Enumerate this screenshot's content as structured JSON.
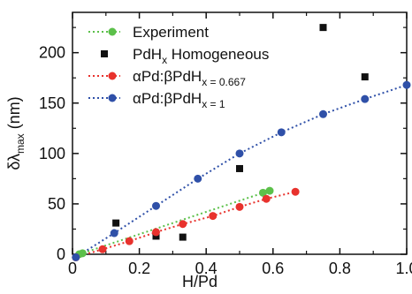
{
  "chart_data": {
    "type": "scatter",
    "xlabel": "H/Pd",
    "ylabel_main": "δλ",
    "ylabel_sub": "max",
    "ylabel_unit": "(nm)",
    "xlim": [
      0,
      1.0
    ],
    "ylim": [
      0,
      240
    ],
    "xticks": [
      0,
      0.2,
      0.4,
      0.6,
      0.8,
      1.0
    ],
    "xtick_labels": [
      "0",
      "0.2",
      "0.4",
      "0.6",
      "0.8",
      "1.0"
    ],
    "yticks": [
      0,
      50,
      100,
      150,
      200
    ],
    "ytick_labels": [
      "0",
      "50",
      "100",
      "150",
      "200"
    ],
    "grid": false,
    "legend_position": "top-left",
    "series": [
      {
        "name": "Experiment",
        "marker": "circle",
        "color": "#5cc04a",
        "fit_line": true,
        "points": [
          [
            0.02,
            0
          ],
          [
            0.03,
            1
          ],
          [
            0.57,
            61
          ],
          [
            0.59,
            63
          ]
        ]
      },
      {
        "name": "PdHx Homogeneous",
        "marker": "square",
        "color": "#111111",
        "fit_line": false,
        "points": [
          [
            0.13,
            31
          ],
          [
            0.25,
            18
          ],
          [
            0.33,
            17
          ],
          [
            0.5,
            85
          ],
          [
            0.75,
            225
          ],
          [
            0.875,
            176
          ]
        ]
      },
      {
        "name": "αPd:βPdHx = 0.667",
        "marker": "circle",
        "color": "#e8322d",
        "fit_line": true,
        "points": [
          [
            0.01,
            -3
          ],
          [
            0.09,
            5
          ],
          [
            0.17,
            13
          ],
          [
            0.25,
            22
          ],
          [
            0.33,
            30
          ],
          [
            0.42,
            38
          ],
          [
            0.5,
            47
          ],
          [
            0.58,
            55
          ],
          [
            0.667,
            62
          ]
        ]
      },
      {
        "name": "αPd:βPdHx = 1",
        "marker": "circle",
        "color": "#2f50a8",
        "fit_line": true,
        "points": [
          [
            0.01,
            -3
          ],
          [
            0.125,
            21
          ],
          [
            0.25,
            48
          ],
          [
            0.375,
            75
          ],
          [
            0.5,
            100
          ],
          [
            0.625,
            121
          ],
          [
            0.75,
            139
          ],
          [
            0.875,
            154
          ],
          [
            1.0,
            168
          ]
        ]
      }
    ],
    "legend": [
      {
        "main": "Experiment",
        "sub": ""
      },
      {
        "main": "PdH",
        "sub": "x",
        "after": " Homogeneous"
      },
      {
        "main": "αPd:βPdH",
        "sub": "x = 0.667"
      },
      {
        "main": "αPd:βPdH",
        "sub": "x = 1"
      }
    ]
  }
}
